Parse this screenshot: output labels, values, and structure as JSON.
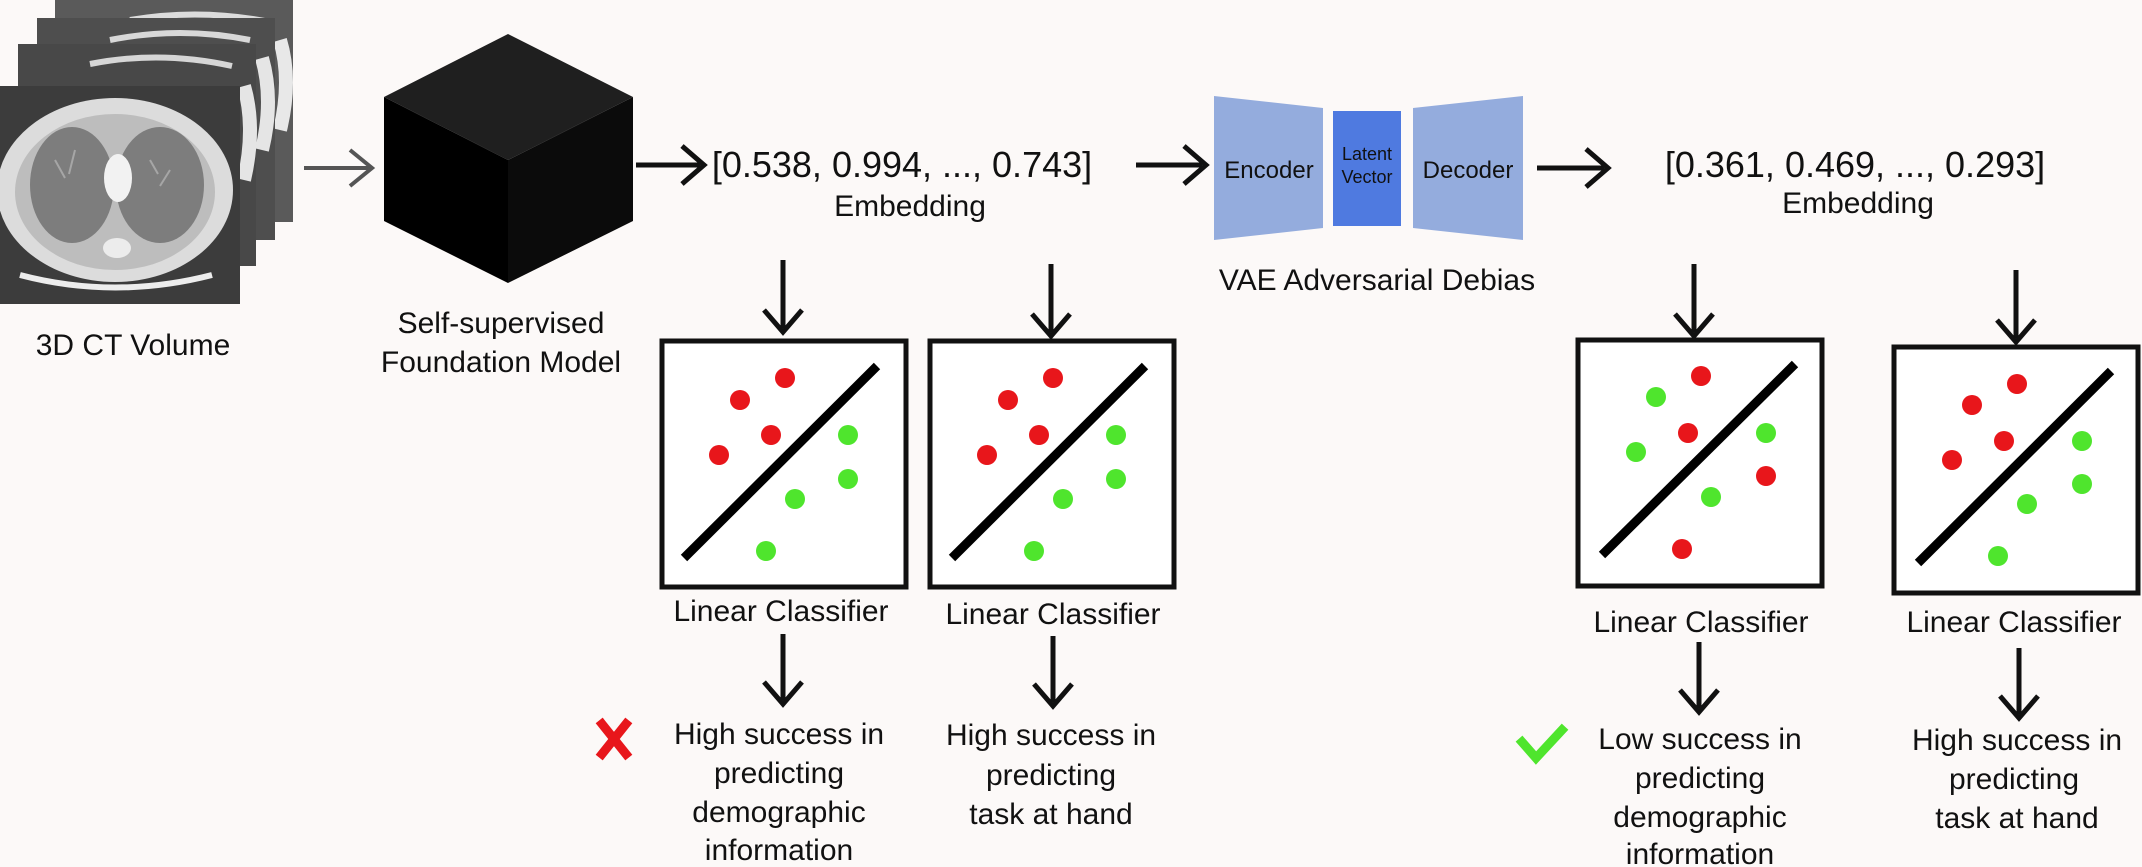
{
  "input": {
    "label": "3D CT Volume"
  },
  "foundation_model": {
    "label_line1": "Self-supervised",
    "label_line2": "Foundation Model"
  },
  "embedding_raw": {
    "vector": "[0.538, 0.994, ..., 0.743]",
    "label": "Embedding"
  },
  "vae": {
    "encoder": "Encoder",
    "latent_line1": "Latent",
    "latent_line2": "Vector",
    "decoder": "Decoder",
    "caption": "VAE Adversarial Debias",
    "encoder_color": "#94acdd",
    "latent_color": "#4f7ae0"
  },
  "embedding_debiased": {
    "vector": "[0.361, 0.469, ..., 0.293]",
    "label": "Embedding"
  },
  "classifiers": [
    {
      "label": "Linear Classifier",
      "result_line1": "High success in",
      "result_line2": "predicting",
      "result_line3": "demographic",
      "result_line4": "information",
      "status": "cross-icon"
    },
    {
      "label": "Linear Classifier",
      "result_line1": "High success in",
      "result_line2": "predicting",
      "result_line3": "task at hand"
    },
    {
      "label": "Linear Classifier",
      "result_line1": "Low success in",
      "result_line2": "predicting",
      "result_line3": "demographic",
      "result_line4": "information",
      "status": "check-icon"
    },
    {
      "label": "Linear Classifier",
      "result_line1": "High success in",
      "result_line2": "predicting",
      "result_line3": "task at hand"
    }
  ],
  "colors": {
    "red_point": "#e8161b",
    "green_point": "#4fe52d",
    "cross": "#e8161b",
    "check": "#4fe52d"
  }
}
